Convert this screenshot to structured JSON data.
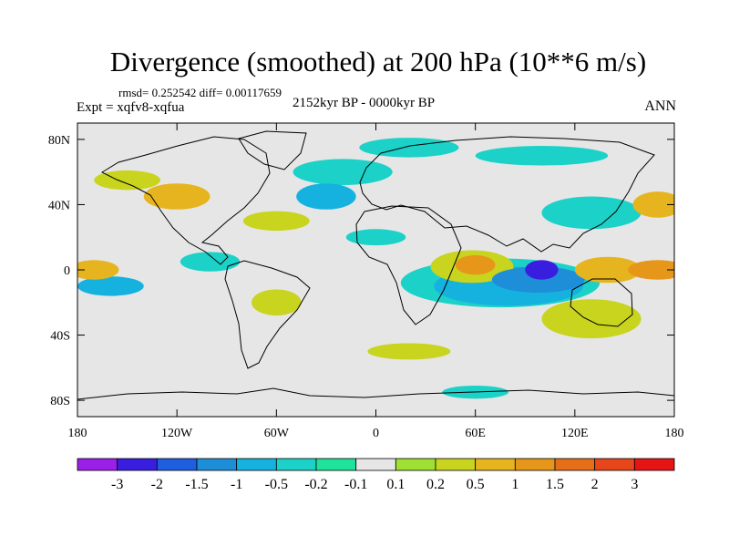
{
  "chart_data": {
    "type": "heatmap",
    "title": "Divergence (smoothed) at 200 hPa (10**6 m/s)",
    "stats": "rmsd= 0.252542 diff= 0.00117659",
    "experiment": "Expt = xqfv8-xqfua",
    "period": "2152kyr BP - 0000kyr BP",
    "season": "ANN",
    "x_ticks": [
      "180",
      "120W",
      "60W",
      "0",
      "60E",
      "120E",
      "180"
    ],
    "x_values": [
      -180,
      -120,
      -60,
      0,
      60,
      120,
      180
    ],
    "y_ticks": [
      "80N",
      "40N",
      "0",
      "40S",
      "80S"
    ],
    "y_values": [
      80,
      40,
      0,
      -40,
      -80
    ],
    "xlim": [
      -180,
      180
    ],
    "ylim": [
      -90,
      90
    ],
    "colorbar": {
      "labels": [
        "-3",
        "-2",
        "-1.5",
        "-1",
        "-0.5",
        "-0.2",
        "-0.1",
        "0.1",
        "0.2",
        "0.5",
        "1",
        "1.5",
        "2",
        "3"
      ],
      "colors": [
        "#9b1fe8",
        "#3a1ee0",
        "#1f5ee0",
        "#1e8ed8",
        "#15b2e0",
        "#1cd2c8",
        "#1fe39a",
        "#e6e6e6",
        "#a0e032",
        "#c8d41e",
        "#e6b41e",
        "#e69619",
        "#e66e19",
        "#e64619",
        "#e61414"
      ]
    },
    "regions": [
      {
        "lon": 100,
        "lat": 0,
        "rlon": 10,
        "rlat": 6,
        "bin": 1
      },
      {
        "lon": 98,
        "lat": -6,
        "rlon": 28,
        "rlat": 8,
        "bin": 3
      },
      {
        "lon": 80,
        "lat": -10,
        "rlon": 45,
        "rlat": 12,
        "bin": 4
      },
      {
        "lon": 75,
        "lat": -8,
        "rlon": 60,
        "rlat": 15,
        "bin": 5
      },
      {
        "lon": 60,
        "lat": 3,
        "rlon": 12,
        "rlat": 6,
        "bin": 11
      },
      {
        "lon": 58,
        "lat": 2,
        "rlon": 25,
        "rlat": 10,
        "bin": 9
      },
      {
        "lon": 140,
        "lat": 0,
        "rlon": 20,
        "rlat": 8,
        "bin": 10
      },
      {
        "lon": 170,
        "lat": 0,
        "rlon": 18,
        "rlat": 6,
        "bin": 11
      },
      {
        "lon": -170,
        "lat": 0,
        "rlon": 15,
        "rlat": 6,
        "bin": 10
      },
      {
        "lon": -160,
        "lat": -10,
        "rlon": 20,
        "rlat": 6,
        "bin": 4
      },
      {
        "lon": -120,
        "lat": 45,
        "rlon": 20,
        "rlat": 8,
        "bin": 10
      },
      {
        "lon": -30,
        "lat": 45,
        "rlon": 18,
        "rlat": 8,
        "bin": 4
      },
      {
        "lon": -20,
        "lat": 60,
        "rlon": 30,
        "rlat": 8,
        "bin": 5
      },
      {
        "lon": 20,
        "lat": 75,
        "rlon": 30,
        "rlat": 6,
        "bin": 5
      },
      {
        "lon": 100,
        "lat": 70,
        "rlon": 40,
        "rlat": 6,
        "bin": 5
      },
      {
        "lon": 130,
        "lat": 35,
        "rlon": 30,
        "rlat": 10,
        "bin": 5
      },
      {
        "lon": 130,
        "lat": -30,
        "rlon": 30,
        "rlat": 12,
        "bin": 9
      },
      {
        "lon": 20,
        "lat": -50,
        "rlon": 25,
        "rlat": 5,
        "bin": 9
      },
      {
        "lon": -60,
        "lat": -20,
        "rlon": 15,
        "rlat": 8,
        "bin": 9
      },
      {
        "lon": 60,
        "lat": -75,
        "rlon": 20,
        "rlat": 4,
        "bin": 5
      },
      {
        "lon": -60,
        "lat": 30,
        "rlon": 20,
        "rlat": 6,
        "bin": 9
      },
      {
        "lon": 0,
        "lat": 20,
        "rlon": 18,
        "rlat": 5,
        "bin": 5
      },
      {
        "lon": -100,
        "lat": 5,
        "rlon": 18,
        "rlat": 6,
        "bin": 5
      },
      {
        "lon": 170,
        "lat": 40,
        "rlon": 15,
        "rlat": 8,
        "bin": 10
      },
      {
        "lon": -150,
        "lat": 55,
        "rlon": 20,
        "rlat": 6,
        "bin": 9
      }
    ]
  }
}
